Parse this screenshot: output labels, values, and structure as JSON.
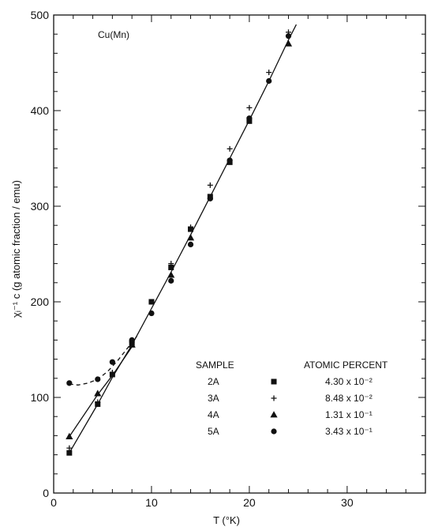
{
  "chart_data": {
    "type": "scatter",
    "title": "",
    "annotation": "Cu(Mn)",
    "xlabel": "T (°K)",
    "ylabel": "χᵢ⁻¹ c  (g atomic fraction / emu)",
    "xlim": [
      0,
      38
    ],
    "ylim": [
      0,
      500
    ],
    "xticks": [
      0,
      10,
      20,
      30
    ],
    "yticks": [
      0,
      100,
      200,
      300,
      400,
      500
    ],
    "x_minor_step": 2,
    "y_minor_step": 20,
    "grid": false,
    "legend_position": "lower-right",
    "legend_headers": {
      "sample": "SAMPLE",
      "percent": "ATOMIC PERCENT"
    },
    "series": [
      {
        "name": "2A",
        "percent": "4.30 x 10⁻²",
        "marker": "square",
        "x": [
          1.6,
          4.5,
          6.0,
          8.0,
          10.0,
          12.0,
          14.0,
          16.0,
          18.0,
          20.0
        ],
        "y": [
          42,
          93,
          124,
          157,
          200,
          236,
          276,
          310,
          346,
          389
        ]
      },
      {
        "name": "3A",
        "percent": "8.48 x 10⁻²",
        "marker": "plus",
        "x": [
          1.6,
          4.5,
          6.0,
          8.0,
          10.0,
          12.0,
          14.0,
          16.0,
          18.0,
          20.0,
          22.0,
          24.0
        ],
        "y": [
          47,
          95,
          126,
          158,
          200,
          240,
          278,
          322,
          360,
          403,
          440,
          482
        ]
      },
      {
        "name": "4A",
        "percent": "1.31 x 10⁻¹",
        "marker": "triangle",
        "x": [
          1.6,
          4.5,
          8.0,
          12.0,
          14.0,
          24.0
        ],
        "y": [
          59,
          104,
          155,
          228,
          267,
          470
        ]
      },
      {
        "name": "5A",
        "percent": "3.43 x 10⁻¹",
        "marker": "circle",
        "x": [
          1.6,
          4.5,
          6.0,
          8.0,
          10.0,
          12.0,
          14.0,
          16.0,
          18.0,
          20.0,
          22.0,
          24.0
        ],
        "y": [
          115,
          119,
          137,
          160,
          188,
          222,
          260,
          308,
          348,
          392,
          431,
          478
        ]
      }
    ],
    "curves": [
      {
        "style": "solid",
        "x": [
          1.6,
          4.5,
          6.0,
          8.0,
          10.0,
          12.0,
          14.0,
          16.0,
          18.0,
          20.0,
          22.0,
          24.0,
          24.8
        ],
        "y": [
          42,
          93,
          121,
          155,
          193,
          231,
          270,
          310,
          350,
          390,
          431,
          474,
          490
        ]
      },
      {
        "style": "solid",
        "x": [
          1.6,
          4.5,
          6.0,
          8.0
        ],
        "y": [
          59,
          103,
          123,
          153
        ]
      },
      {
        "style": "dashed",
        "x": [
          1.6,
          2.5,
          3.5,
          4.5,
          5.5,
          6.5,
          7.5,
          8.5
        ],
        "y": [
          114,
          113,
          115,
          119,
          127,
          138,
          151,
          164
        ]
      }
    ]
  }
}
